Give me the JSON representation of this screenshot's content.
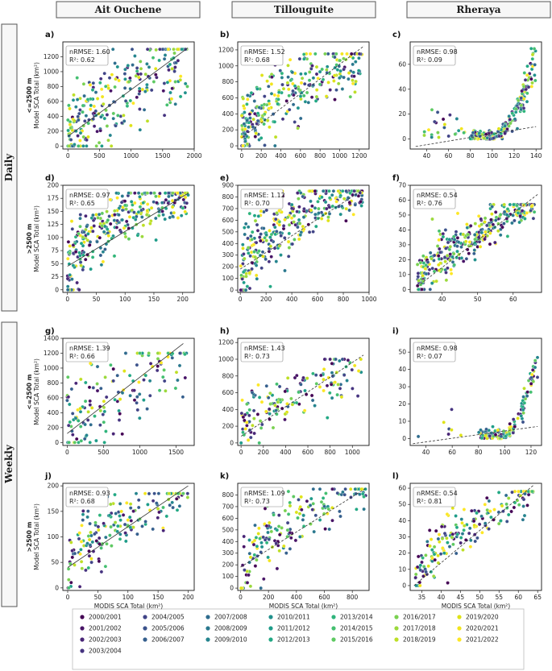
{
  "figure": {
    "column_headers": [
      "Ait Ouchene",
      "Tillouguite",
      "Rheraya"
    ],
    "row_groups": [
      "Daily",
      "Weekly"
    ],
    "elevation_labels": [
      "<=2500 m",
      ">2500 m",
      "<=2500 m",
      ">2500 m"
    ],
    "xlabel": "MODIS SCA Total (km²)",
    "ylabel": "Model SCA Total (km²)"
  },
  "legend": {
    "entries": [
      "2000/2001",
      "2001/2002",
      "2002/2003",
      "2003/2004",
      "2004/2005",
      "2005/2006",
      "2006/2007",
      "2007/2008",
      "2008/2009",
      "2009/2010",
      "2010/2011",
      "2011/2012",
      "2012/2013",
      "2013/2014",
      "2014/2015",
      "2015/2016",
      "2016/2017",
      "2017/2018",
      "2018/2019",
      "2019/2020",
      "2020/2021",
      "2021/2022"
    ],
    "colors": [
      "#440154",
      "#481467",
      "#482576",
      "#463480",
      "#414487",
      "#3b528b",
      "#355f8d",
      "#2f6c8e",
      "#2a788e",
      "#25848e",
      "#21918c",
      "#1e9c89",
      "#22a884",
      "#2fb47c",
      "#44bf70",
      "#5ec962",
      "#7ad151",
      "#9bd93c",
      "#bddf26",
      "#dfe318",
      "#f2e51d",
      "#fde725"
    ]
  },
  "chart_data": [
    {
      "id": "a",
      "type": "scatter",
      "title": "",
      "xlabel": "",
      "ylabel": "Model SCA Total (km²)",
      "xlim": [
        -80,
        2000
      ],
      "ylim": [
        -40,
        1400
      ],
      "xticks": [
        0,
        500,
        1000,
        1500,
        2000
      ],
      "yticks": [
        0,
        200,
        400,
        600,
        800,
        1000,
        1200
      ],
      "nrmse": "nRMSE: 1.60",
      "r2": "R²: 0.62",
      "reg_line": [
        [
          0,
          130
        ],
        [
          1900,
          1320
        ]
      ],
      "identity_dashed": false,
      "cloud": {
        "kind": "power",
        "x_range": [
          0,
          1900
        ],
        "y_range": [
          0,
          1300
        ],
        "exp": 0.75,
        "spread": 0.22,
        "n": 260
      }
    },
    {
      "id": "b",
      "type": "scatter",
      "title": "",
      "xlabel": "",
      "ylabel": "",
      "xlim": [
        -40,
        1300
      ],
      "ylim": [
        -40,
        1300
      ],
      "xticks": [
        0,
        200,
        400,
        600,
        800,
        1000,
        1200
      ],
      "yticks": [
        0,
        200,
        400,
        600,
        800,
        1000,
        1200
      ],
      "nrmse": "nRMSE: 1.52",
      "r2": "R²: 0.68",
      "reg_line": [
        [
          0,
          100
        ],
        [
          1250,
          1250
        ]
      ],
      "identity_dashed": true,
      "cloud": {
        "kind": "power",
        "x_range": [
          0,
          1250
        ],
        "y_range": [
          0,
          1150
        ],
        "exp": 0.55,
        "spread": 0.18,
        "n": 300
      }
    },
    {
      "id": "c",
      "type": "scatter",
      "title": "",
      "xlabel": "",
      "ylabel": "",
      "xlim": [
        25,
        145
      ],
      "ylim": [
        -8,
        78
      ],
      "xticks": [
        40,
        60,
        80,
        100,
        120,
        140
      ],
      "yticks": [
        0,
        20,
        40,
        60
      ],
      "nrmse": "nRMSE: 0.98",
      "r2": "R²: 0.09",
      "reg_line": [
        [
          30,
          -6
        ],
        [
          140,
          10
        ]
      ],
      "identity_dashed": true,
      "cloud": {
        "kind": "rheraya",
        "x_range": [
          35,
          140
        ],
        "y_range": [
          0,
          75
        ],
        "exp": 2,
        "spread": 0.2,
        "n": 260
      }
    },
    {
      "id": "d",
      "type": "scatter",
      "title": "",
      "xlabel": "",
      "ylabel": "Model SCA Total (km²)",
      "xlim": [
        -8,
        220
      ],
      "ylim": [
        -5,
        200
      ],
      "xticks": [
        0,
        50,
        100,
        150,
        200
      ],
      "yticks": [
        0,
        25,
        50,
        75,
        100,
        125,
        150,
        175,
        200
      ],
      "nrmse": "nRMSE: 0.97",
      "r2": "R²: 0.65",
      "reg_line": [
        [
          0,
          45
        ],
        [
          210,
          185
        ]
      ],
      "identity_dashed": false,
      "cloud": {
        "kind": "sat",
        "x_range": [
          0,
          210
        ],
        "y_range": [
          0,
          185
        ],
        "exp": 0.35,
        "spread": 0.2,
        "n": 320
      }
    },
    {
      "id": "e",
      "type": "scatter",
      "title": "",
      "xlabel": "",
      "ylabel": "",
      "xlim": [
        -20,
        1000
      ],
      "ylim": [
        -20,
        900
      ],
      "xticks": [
        0,
        200,
        400,
        600,
        800,
        1000
      ],
      "yticks": [
        0,
        100,
        200,
        300,
        400,
        500,
        600,
        700,
        800,
        900
      ],
      "nrmse": "nRMSE: 1.12",
      "r2": "R²: 0.70",
      "reg_line": [
        [
          0,
          180
        ],
        [
          950,
          860
        ]
      ],
      "identity_dashed": true,
      "cloud": {
        "kind": "sat",
        "x_range": [
          0,
          950
        ],
        "y_range": [
          0,
          850
        ],
        "exp": 0.4,
        "spread": 0.2,
        "n": 320
      }
    },
    {
      "id": "f",
      "type": "scatter",
      "title": "",
      "xlabel": "",
      "ylabel": "",
      "xlim": [
        31,
        68
      ],
      "ylim": [
        -2,
        70
      ],
      "xticks": [
        40,
        50,
        60
      ],
      "yticks": [
        0,
        10,
        20,
        30,
        40,
        50,
        60,
        70
      ],
      "nrmse": "nRMSE: 0.54",
      "r2": "R²: 0.76",
      "reg_line": [
        [
          33,
          2
        ],
        [
          67,
          64
        ]
      ],
      "identity_dashed": true,
      "cloud": {
        "kind": "sat",
        "x_range": [
          33,
          66
        ],
        "y_range": [
          0,
          57
        ],
        "exp": 0.6,
        "spread": 0.16,
        "n": 340
      }
    },
    {
      "id": "g",
      "type": "scatter",
      "title": "",
      "xlabel": "",
      "ylabel": "Model SCA Total (km²)",
      "xlim": [
        -60,
        1750
      ],
      "ylim": [
        -40,
        1400
      ],
      "xticks": [
        0,
        500,
        1000,
        1500
      ],
      "yticks": [
        0,
        200,
        400,
        600,
        800,
        1000,
        1200,
        1400
      ],
      "nrmse": "nRMSE: 1.39",
      "r2": "R²: 0.66",
      "reg_line": [
        [
          0,
          120
        ],
        [
          1600,
          1330
        ]
      ],
      "identity_dashed": false,
      "cloud": {
        "kind": "power",
        "x_range": [
          0,
          1650
        ],
        "y_range": [
          0,
          1200
        ],
        "exp": 0.7,
        "spread": 0.25,
        "n": 150
      }
    },
    {
      "id": "h",
      "type": "scatter",
      "title": "",
      "xlabel": "",
      "ylabel": "",
      "xlim": [
        -30,
        1150
      ],
      "ylim": [
        -30,
        1250
      ],
      "xticks": [
        0,
        200,
        400,
        600,
        800,
        1000
      ],
      "yticks": [
        0,
        200,
        400,
        600,
        800,
        1000,
        1200
      ],
      "nrmse": "nRMSE: 1.43",
      "r2": "R²: 0.73",
      "reg_line": [
        [
          0,
          80
        ],
        [
          1100,
          1050
        ]
      ],
      "identity_dashed": true,
      "cloud": {
        "kind": "power",
        "x_range": [
          0,
          1100
        ],
        "y_range": [
          0,
          1000
        ],
        "exp": 0.6,
        "spread": 0.2,
        "n": 160
      }
    },
    {
      "id": "i",
      "type": "scatter",
      "title": "",
      "xlabel": "",
      "ylabel": "",
      "xlim": [
        28,
        128
      ],
      "ylim": [
        -4,
        58
      ],
      "xticks": [
        40,
        60,
        80,
        100,
        120
      ],
      "yticks": [
        0,
        10,
        20,
        30,
        40,
        50
      ],
      "nrmse": "nRMSE: 0.98",
      "r2": "R²: 0.07",
      "reg_line": [
        [
          30,
          -3
        ],
        [
          125,
          7
        ]
      ],
      "identity_dashed": true,
      "cloud": {
        "kind": "rheraya",
        "x_range": [
          30,
          125
        ],
        "y_range": [
          0,
          55
        ],
        "exp": 2,
        "spread": 0.2,
        "n": 150
      }
    },
    {
      "id": "j",
      "type": "scatter",
      "title": "",
      "xlabel": "MODIS SCA Total (km²)",
      "ylabel": "Model SCA Total (km²)",
      "xlim": [
        -8,
        210
      ],
      "ylim": [
        -5,
        205
      ],
      "xticks": [
        0,
        50,
        100,
        150,
        200
      ],
      "yticks": [
        0,
        50,
        100,
        150,
        200
      ],
      "nrmse": "nRMSE: 0.93",
      "r2": "R²: 0.68",
      "reg_line": [
        [
          0,
          40
        ],
        [
          200,
          200
        ]
      ],
      "identity_dashed": false,
      "cloud": {
        "kind": "sat",
        "x_range": [
          0,
          200
        ],
        "y_range": [
          0,
          185
        ],
        "exp": 0.45,
        "spread": 0.2,
        "n": 170
      }
    },
    {
      "id": "k",
      "type": "scatter",
      "title": "",
      "xlabel": "MODIS SCA Total (km²)",
      "ylabel": "",
      "xlim": [
        -20,
        920
      ],
      "ylim": [
        -20,
        900
      ],
      "xticks": [
        0,
        200,
        400,
        600,
        800
      ],
      "yticks": [
        0,
        100,
        200,
        300,
        400,
        500,
        600,
        700,
        800
      ],
      "nrmse": "nRMSE: 1.09",
      "r2": "R²: 0.73",
      "reg_line": [
        [
          0,
          180
        ],
        [
          900,
          860
        ]
      ],
      "identity_dashed": true,
      "cloud": {
        "kind": "sat",
        "x_range": [
          0,
          900
        ],
        "y_range": [
          0,
          850
        ],
        "exp": 0.45,
        "spread": 0.2,
        "n": 170
      }
    },
    {
      "id": "l",
      "type": "scatter",
      "title": "",
      "xlabel": "MODIS SCA Total (km²)",
      "ylabel": "",
      "xlim": [
        32,
        66
      ],
      "ylim": [
        -3,
        63
      ],
      "xticks": [
        35,
        40,
        45,
        50,
        55,
        60,
        65
      ],
      "yticks": [
        0,
        10,
        20,
        30,
        40,
        50,
        60
      ],
      "nrmse": "nRMSE: 0.54",
      "r2": "R²: 0.81",
      "reg_line": [
        [
          33,
          0
        ],
        [
          64,
          62
        ]
      ],
      "identity_dashed": true,
      "cloud": {
        "kind": "sat",
        "x_range": [
          33,
          64
        ],
        "y_range": [
          0,
          58
        ],
        "exp": 0.6,
        "spread": 0.15,
        "n": 180
      }
    }
  ]
}
